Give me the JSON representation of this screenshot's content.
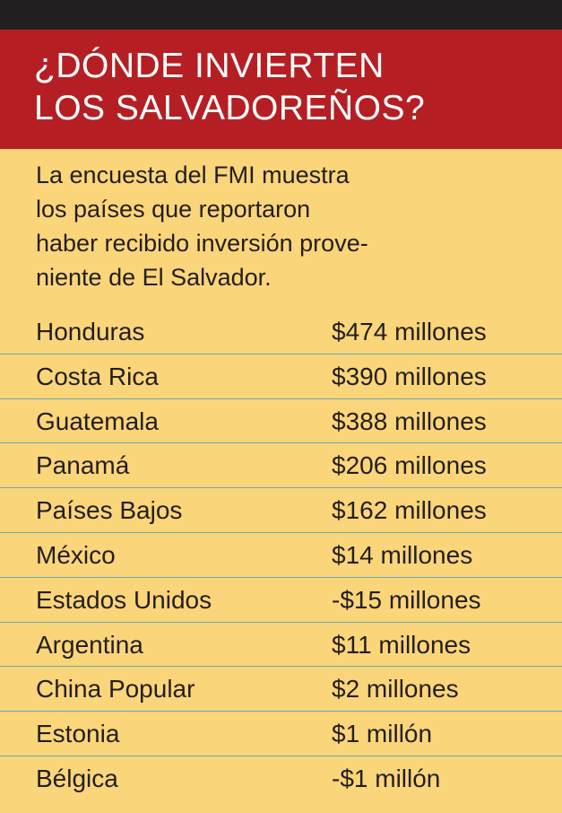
{
  "header": {
    "title_line1": "¿DÓNDE INVIERTEN",
    "title_line2": "LOS SALVADOREÑOS?"
  },
  "intro": {
    "line1": "La encuesta del FMI muestra",
    "line2": "los países que reportaron",
    "line3": "haber recibido inversión prove-",
    "line4": "niente de El Salvador."
  },
  "rows": [
    {
      "country": "Honduras",
      "amount": "$474 millones"
    },
    {
      "country": "Costa Rica",
      "amount": "$390 millones"
    },
    {
      "country": "Guatemala",
      "amount": "$388 millones"
    },
    {
      "country": "Panamá",
      "amount": "$206 millones"
    },
    {
      "country": "Países Bajos",
      "amount": "$162 millones"
    },
    {
      "country": "México",
      "amount": "$14 millones"
    },
    {
      "country": "Estados Unidos",
      "amount": "-$15 millones"
    },
    {
      "country": "Argentina",
      "amount": "$11 millones"
    },
    {
      "country": "China Popular",
      "amount": "$2 millones"
    },
    {
      "country": "Estonia",
      "amount": "$1 millón"
    },
    {
      "country": "Bélgica",
      "amount": "-$1 millón"
    }
  ],
  "colors": {
    "background": "#fbd57a",
    "title_band": "#b51f24",
    "top_bar": "#231f20",
    "text": "#231f20",
    "divider": "#6aa9b6"
  }
}
